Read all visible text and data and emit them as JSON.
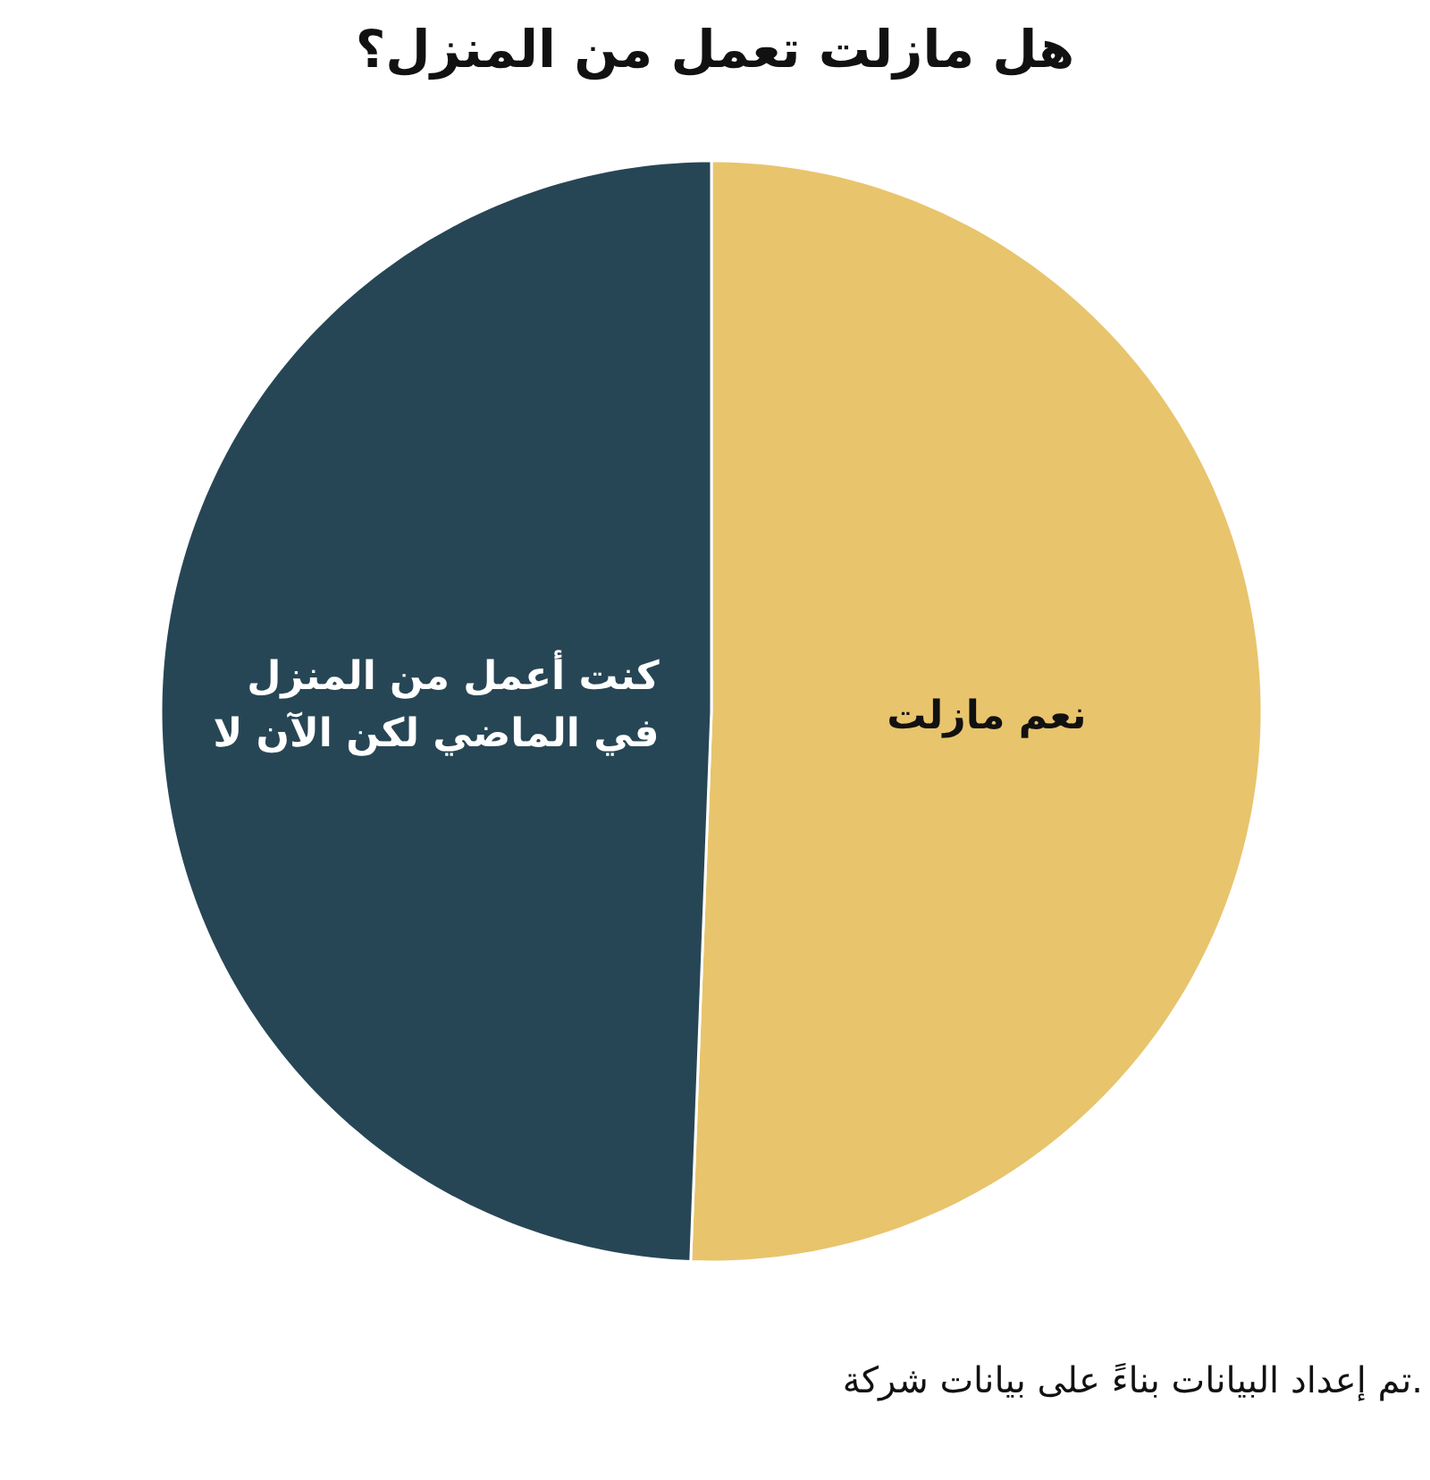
{
  "chart_data": {
    "type": "pie",
    "title": "هل مازلت تعمل من المنزل؟",
    "categories": [
      "نعم مازلت",
      "كنت أعمل من المنزل في الماضي لكن الآن لا"
    ],
    "values": [
      50.6,
      49.4
    ],
    "colors": [
      "#e8c46c",
      "#274655"
    ],
    "annotations": [
      "تم إعداد البيانات بناءً على بيانات شركة."
    ]
  }
}
